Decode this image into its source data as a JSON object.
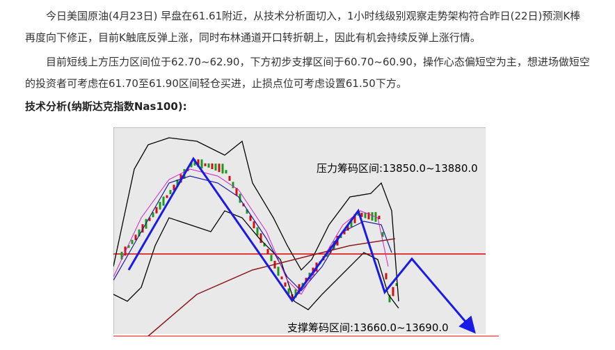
{
  "paragraphs": [
    "今日美国原油(4月23日) 早盘在61.61附近，从技术分析面切入，1小时线级别观察走势架构符合昨日(22日)预测K棒再度向下修正，目前K触底反弹上涨，同时布林通道开口转折朝上，因此有机会持续反弹上涨行情。",
    "目前短线上方压力区间位于62.70~62.90，下方初步支撑区间于60.70~60.90，操作心态偏短空为主，想进场做短空的投资者可考虑在61.70至61.90区间轻仓买进，止损点位可考虑设置61.50下方。"
  ],
  "heading": "技术分析(纳斯达克指数Nas100):",
  "figure": {
    "resistance_label": "压力筹码区间:13850.0~13880.0",
    "support_label": "支撑筹码区间:13660.0~13690.0"
  }
}
